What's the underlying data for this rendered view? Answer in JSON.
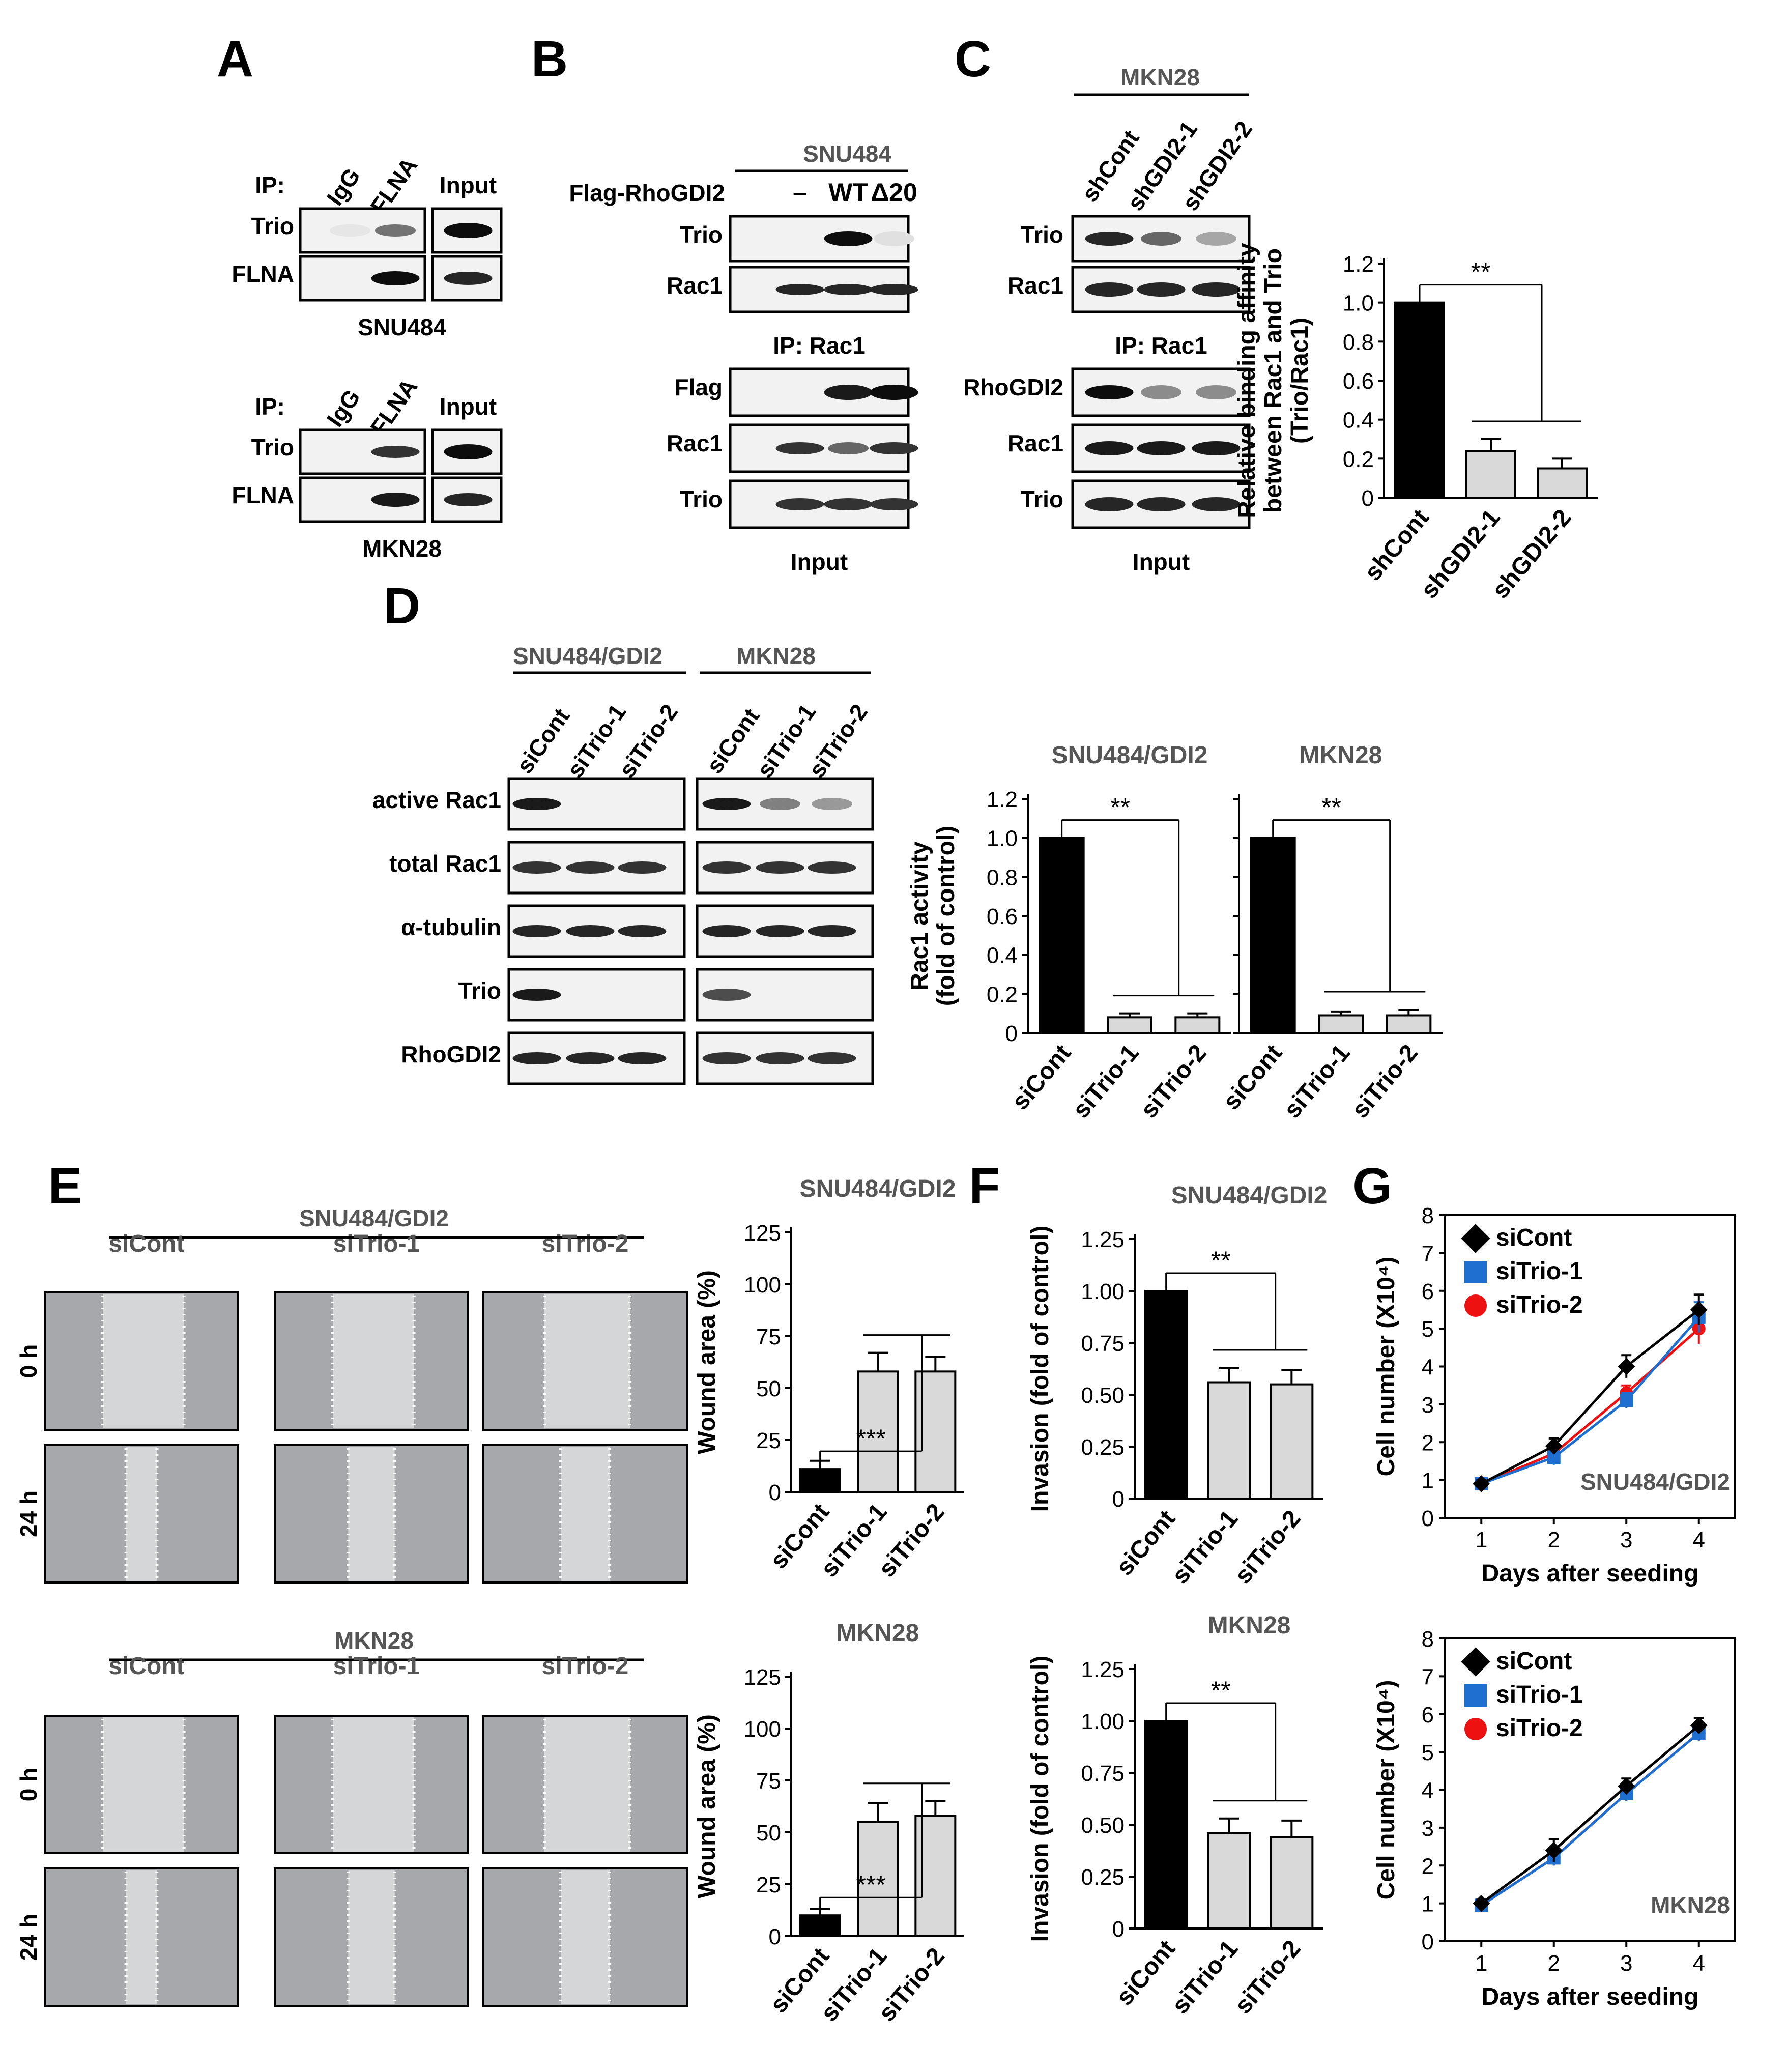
{
  "panel_labels": [
    "A",
    "B",
    "C",
    "D",
    "E",
    "F",
    "G"
  ],
  "panelA": {
    "ip_prefix": "IP:",
    "lanes": [
      "IgG",
      "FLNA",
      "Input"
    ],
    "rows": [
      "Trio",
      "FLNA"
    ],
    "cell_lines": [
      "SNU484",
      "MKN28"
    ]
  },
  "panelB": {
    "cell_line": "SNU484",
    "row_label": "Flag-RhoGDI2",
    "lanes": [
      "–",
      "WT",
      "Δ20"
    ],
    "ip_rows": [
      "Trio",
      "Rac1"
    ],
    "ip_caption": "IP: Rac1",
    "input_rows": [
      "Flag",
      "Rac1",
      "Trio"
    ],
    "input_caption": "Input"
  },
  "panelC": {
    "cell_line": "MKN28",
    "lanes": [
      "shCont",
      "shGDI2-1",
      "shGDI2-2"
    ],
    "ip_rows": [
      "Trio",
      "Rac1"
    ],
    "ip_caption": "IP: Rac1",
    "input_rows": [
      "RhoGDI2",
      "Rac1",
      "Trio"
    ],
    "input_caption": "Input"
  },
  "panelD": {
    "groups": [
      "SNU484/GDI2",
      "MKN28"
    ],
    "lanes": [
      "siCont",
      "siTrio-1",
      "siTrio-2"
    ],
    "rows": [
      "active Rac1",
      "total Rac1",
      "α-tubulin",
      "Trio",
      "RhoGDI2"
    ]
  },
  "panelE": {
    "groups": [
      "SNU484/GDI2",
      "MKN28"
    ],
    "columns": [
      "siCont",
      "siTrio-1",
      "siTrio-2"
    ],
    "rows": [
      "0 h",
      "24 h"
    ]
  },
  "charts": [
    {
      "key": "C",
      "ylabel_lines": [
        "Relative binding affinity",
        "between Rac1 and Trio",
        "(Trio/Rac1)"
      ],
      "ticks": [
        "0",
        "0.2",
        "0.4",
        "0.6",
        "0.8",
        "1.0",
        "1.2"
      ],
      "sig": "**"
    },
    {
      "key": "D1",
      "title": "SNU484/GDI2",
      "ylabel_lines": [
        "Rac1 activity",
        "(fold of control)"
      ],
      "ticks": [
        "0",
        "0.2",
        "0.4",
        "0.6",
        "0.8",
        "1.0",
        "1.2"
      ],
      "sig": "**"
    },
    {
      "key": "D2",
      "title": "MKN28",
      "sig": "**"
    },
    {
      "key": "E1",
      "title": "SNU484/GDI2",
      "ylabel_lines": [
        "Wound area (%)"
      ],
      "ticks": [
        "0",
        "25",
        "50",
        "75",
        "100",
        "125"
      ],
      "sig": "***"
    },
    {
      "key": "E2",
      "title": "MKN28",
      "ylabel_lines": [
        "Wound area (%)"
      ],
      "ticks": [
        "0",
        "25",
        "50",
        "75",
        "100",
        "125"
      ],
      "sig": "***"
    },
    {
      "key": "F1",
      "title": "SNU484/GDI2",
      "ylabel_lines": [
        "Invasion (fold of control)"
      ],
      "ticks": [
        "0",
        "0.25",
        "0.50",
        "0.75",
        "1.00",
        "1.25"
      ],
      "sig": "**"
    },
    {
      "key": "F2",
      "title": "MKN28",
      "ylabel_lines": [
        "Invasion (fold of control)"
      ],
      "ticks": [
        "0",
        "0.25",
        "0.50",
        "0.75",
        "1.00",
        "1.25"
      ],
      "sig": "**"
    },
    {
      "key": "G1",
      "title": "SNU484/GDI2",
      "ylabel_lines": [
        "Cell number (X10⁴)"
      ],
      "xlabel": "Days after seeding",
      "ticks": [
        "0",
        "1",
        "2",
        "3",
        "4",
        "5",
        "6",
        "7",
        "8"
      ],
      "xticks": [
        "1",
        "2",
        "3",
        "4"
      ],
      "legend": [
        "siCont",
        "siTrio-1",
        "siTrio-2"
      ]
    },
    {
      "key": "G2",
      "title": "MKN28",
      "ylabel_lines": [
        "Cell number (X10⁴)"
      ],
      "xlabel": "Days after seeding",
      "ticks": [
        "0",
        "1",
        "2",
        "3",
        "4",
        "5",
        "6",
        "7",
        "8"
      ],
      "xticks": [
        "1",
        "2",
        "3",
        "4"
      ],
      "legend": [
        "siCont",
        "siTrio-1",
        "siTrio-2"
      ]
    }
  ],
  "colors": {
    "bar_control": "#000000",
    "bar_treated": "#d9d9d9",
    "siCont": "#000000",
    "siTrio-1": "#1f6fd1",
    "siTrio-2": "#ee1111"
  },
  "chart_data": [
    {
      "type": "bar",
      "panel": "C",
      "categories": [
        "shCont",
        "shGDI2-1",
        "shGDI2-2"
      ],
      "values": [
        1.0,
        0.24,
        0.15
      ],
      "errors": [
        0.0,
        0.06,
        0.05
      ],
      "ylim": [
        0,
        1.2
      ],
      "significance": "**"
    },
    {
      "type": "bar",
      "panel": "D",
      "title": "SNU484/GDI2",
      "categories": [
        "siCont",
        "siTrio-1",
        "siTrio-2"
      ],
      "values": [
        1.0,
        0.08,
        0.08
      ],
      "errors": [
        0.0,
        0.02,
        0.02
      ],
      "ylim": [
        0,
        1.2
      ],
      "significance": "**"
    },
    {
      "type": "bar",
      "panel": "D",
      "title": "MKN28",
      "categories": [
        "siCont",
        "siTrio-1",
        "siTrio-2"
      ],
      "values": [
        1.0,
        0.09,
        0.09
      ],
      "errors": [
        0.0,
        0.02,
        0.03
      ],
      "ylim": [
        0,
        1.2
      ],
      "significance": "**"
    },
    {
      "type": "bar",
      "panel": "E",
      "title": "SNU484/GDI2",
      "categories": [
        "siCont",
        "siTrio-1",
        "siTrio-2"
      ],
      "values": [
        11,
        58,
        58
      ],
      "errors": [
        4,
        9,
        7
      ],
      "ylim": [
        0,
        125
      ],
      "significance": "***"
    },
    {
      "type": "bar",
      "panel": "E",
      "title": "MKN28",
      "categories": [
        "siCont",
        "siTrio-1",
        "siTrio-2"
      ],
      "values": [
        10,
        55,
        58
      ],
      "errors": [
        3,
        9,
        7
      ],
      "ylim": [
        0,
        125
      ],
      "significance": "***"
    },
    {
      "type": "bar",
      "panel": "F",
      "title": "SNU484/GDI2",
      "categories": [
        "siCont",
        "siTrio-1",
        "siTrio-2"
      ],
      "values": [
        1.0,
        0.56,
        0.55
      ],
      "errors": [
        0.0,
        0.07,
        0.07
      ],
      "ylim": [
        0,
        1.25
      ],
      "significance": "**"
    },
    {
      "type": "bar",
      "panel": "F",
      "title": "MKN28",
      "categories": [
        "siCont",
        "siTrio-1",
        "siTrio-2"
      ],
      "values": [
        1.0,
        0.46,
        0.44
      ],
      "errors": [
        0.0,
        0.07,
        0.08
      ],
      "ylim": [
        0,
        1.25
      ],
      "significance": "**"
    },
    {
      "type": "line",
      "panel": "G",
      "title": "SNU484/GDI2",
      "x": [
        1,
        2,
        3,
        4
      ],
      "series": [
        {
          "name": "siCont",
          "values": [
            0.9,
            1.9,
            4.0,
            5.5
          ],
          "errors": [
            0.1,
            0.2,
            0.3,
            0.4
          ]
        },
        {
          "name": "siTrio-1",
          "values": [
            0.9,
            1.6,
            3.1,
            5.3
          ],
          "errors": [
            0.1,
            0.2,
            0.2,
            0.4
          ]
        },
        {
          "name": "siTrio-2",
          "values": [
            0.9,
            1.7,
            3.3,
            5.0
          ],
          "errors": [
            0.1,
            0.2,
            0.2,
            0.4
          ]
        }
      ],
      "xlim": [
        0.5,
        4.5
      ],
      "ylim": [
        0,
        8
      ],
      "xlabel": "Days after seeding",
      "ylabel": "Cell number (X10⁴)"
    },
    {
      "type": "line",
      "panel": "G",
      "title": "MKN28",
      "x": [
        1,
        2,
        3,
        4
      ],
      "series": [
        {
          "name": "siCont",
          "values": [
            1.0,
            2.4,
            4.1,
            5.7
          ],
          "errors": [
            0.1,
            0.3,
            0.2,
            0.2
          ]
        },
        {
          "name": "siTrio-1",
          "values": [
            0.95,
            2.2,
            3.9,
            5.5
          ],
          "errors": [
            0.1,
            0.2,
            0.2,
            0.2
          ]
        },
        {
          "name": "siTrio-2",
          "values": [
            0.95,
            2.2,
            3.9,
            5.5
          ],
          "errors": [
            0.1,
            0.2,
            0.2,
            0.2
          ]
        }
      ],
      "xlim": [
        0.5,
        4.5
      ],
      "ylim": [
        0,
        8
      ],
      "xlabel": "Days after seeding",
      "ylabel": "Cell number (X10⁴)"
    }
  ]
}
